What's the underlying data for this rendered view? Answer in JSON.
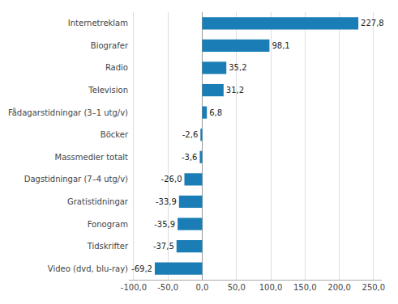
{
  "chart_data": {
    "type": "bar",
    "orientation": "horizontal",
    "categories": [
      "Video (dvd, blu-ray)",
      "Tidskrifter",
      "Fonogram",
      "Gratistidningar",
      "Dagstidningar (7–4 utg/v)",
      "Massmedier totalt",
      "Böcker",
      "Fådagarstidningar (3–1 utg/v)",
      "Television",
      "Radio",
      "Biografer",
      "Internetreklam"
    ],
    "values": [
      -69.2,
      -37.5,
      -35.9,
      -33.9,
      -26.0,
      -3.6,
      -2.6,
      6.8,
      31.2,
      35.2,
      98.1,
      227.8
    ],
    "value_labels": [
      "-69,2",
      "-37,5",
      "-35,9",
      "-33,9",
      "-26,0",
      "-3,6",
      "-2,6",
      "6,8",
      "31,2",
      "35,2",
      "98,1",
      "227,8"
    ],
    "data_labels": true,
    "color": "#1a7db5",
    "xlim": [
      -107,
      262
    ],
    "xticks": [
      {
        "value": -100,
        "label": "-100,0"
      },
      {
        "value": -50,
        "label": "-50,0"
      },
      {
        "value": 0,
        "label": "0,0"
      },
      {
        "value": 50,
        "label": "50,0"
      },
      {
        "value": 100,
        "label": "100,0"
      },
      {
        "value": 150,
        "label": "150,0"
      },
      {
        "value": 200,
        "label": "200,0"
      },
      {
        "value": 250,
        "label": "250,0"
      }
    ],
    "grid": true
  }
}
